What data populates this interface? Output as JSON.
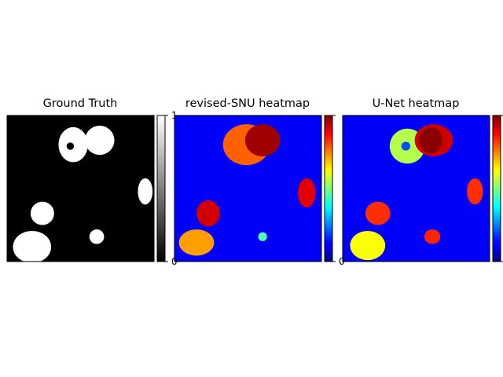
{
  "chart_data": [
    {
      "type": "heatmap",
      "title": "Ground Truth",
      "colormap": "gray",
      "colorbar": {
        "min": 0,
        "max": 1,
        "ticks": [
          "0",
          "1"
        ]
      },
      "regions": [
        {
          "name": "lesion-top-center",
          "cx": 0.45,
          "cy": 0.2,
          "rx": 0.1,
          "ry": 0.12,
          "value": 1
        },
        {
          "name": "lesion-top-right",
          "cx": 0.63,
          "cy": 0.17,
          "rx": 0.1,
          "ry": 0.1,
          "value": 1
        },
        {
          "name": "hole-top-center",
          "cx": 0.43,
          "cy": 0.21,
          "rx": 0.025,
          "ry": 0.025,
          "value": 0
        },
        {
          "name": "lesion-right",
          "cx": 0.94,
          "cy": 0.52,
          "rx": 0.05,
          "ry": 0.09,
          "value": 1
        },
        {
          "name": "lesion-left",
          "cx": 0.24,
          "cy": 0.67,
          "rx": 0.08,
          "ry": 0.08,
          "value": 1
        },
        {
          "name": "lesion-small",
          "cx": 0.61,
          "cy": 0.83,
          "rx": 0.05,
          "ry": 0.05,
          "value": 1
        },
        {
          "name": "lesion-bottom-left",
          "cx": 0.17,
          "cy": 0.9,
          "rx": 0.13,
          "ry": 0.11,
          "value": 1
        }
      ]
    },
    {
      "type": "heatmap",
      "title": "revised-SNU heatmap",
      "colormap": "jet",
      "colorbar": {
        "min": 0,
        "max": 1,
        "ticks": [
          "0",
          ""
        ]
      },
      "regions": [
        {
          "name": "top-center-blob",
          "cx": 0.49,
          "cy": 0.2,
          "rx": 0.16,
          "ry": 0.14,
          "value": 0.78
        },
        {
          "name": "top-right-core",
          "cx": 0.6,
          "cy": 0.17,
          "rx": 0.12,
          "ry": 0.11,
          "value": 0.97
        },
        {
          "name": "right-blob",
          "cx": 0.9,
          "cy": 0.53,
          "rx": 0.06,
          "ry": 0.1,
          "value": 0.9
        },
        {
          "name": "left-blob",
          "cx": 0.23,
          "cy": 0.67,
          "rx": 0.08,
          "ry": 0.09,
          "value": 0.92
        },
        {
          "name": "bottom-left-blob",
          "cx": 0.15,
          "cy": 0.87,
          "rx": 0.12,
          "ry": 0.09,
          "value": 0.72
        },
        {
          "name": "small-blob",
          "cx": 0.6,
          "cy": 0.83,
          "rx": 0.03,
          "ry": 0.03,
          "value": 0.45
        }
      ]
    },
    {
      "type": "heatmap",
      "title": "U-Net heatmap",
      "colormap": "jet",
      "colorbar": {
        "min": 0,
        "max": 1,
        "ticks": [
          "",
          ""
        ]
      },
      "regions": [
        {
          "name": "top-center-ring",
          "cx": 0.44,
          "cy": 0.21,
          "rx": 0.12,
          "ry": 0.12,
          "value": 0.55
        },
        {
          "name": "top-center-hole",
          "cx": 0.43,
          "cy": 0.21,
          "rx": 0.03,
          "ry": 0.03,
          "value": 0.2
        },
        {
          "name": "top-right-blob",
          "cx": 0.62,
          "cy": 0.17,
          "rx": 0.13,
          "ry": 0.11,
          "value": 0.92
        },
        {
          "name": "top-right-core",
          "cx": 0.6,
          "cy": 0.17,
          "rx": 0.08,
          "ry": 0.09,
          "value": 0.99
        },
        {
          "name": "right-blob",
          "cx": 0.9,
          "cy": 0.52,
          "rx": 0.055,
          "ry": 0.09,
          "value": 0.83
        },
        {
          "name": "left-blob",
          "cx": 0.24,
          "cy": 0.67,
          "rx": 0.085,
          "ry": 0.08,
          "value": 0.83
        },
        {
          "name": "bottom-left-blob",
          "cx": 0.17,
          "cy": 0.89,
          "rx": 0.12,
          "ry": 0.1,
          "value": 0.62
        },
        {
          "name": "small-blob",
          "cx": 0.61,
          "cy": 0.83,
          "rx": 0.055,
          "ry": 0.05,
          "value": 0.84
        }
      ]
    }
  ]
}
